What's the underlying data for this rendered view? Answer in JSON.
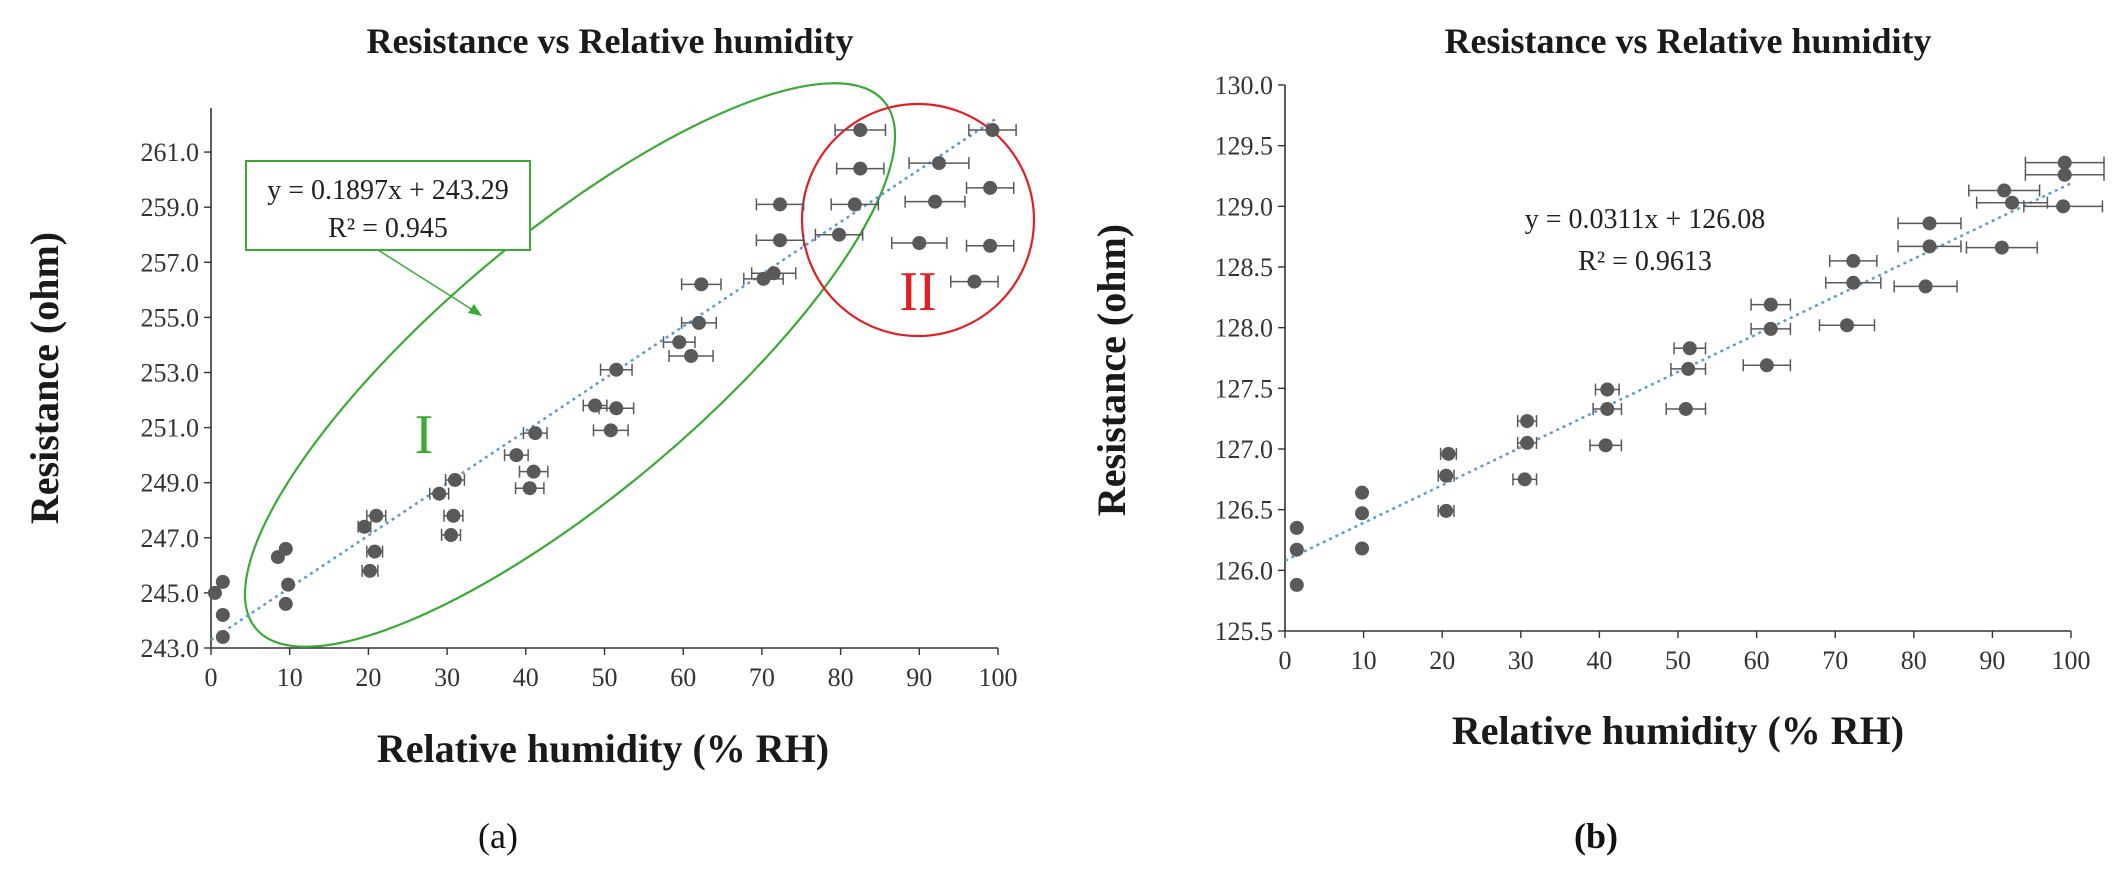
{
  "chart_data": [
    {
      "id": "a",
      "type": "scatter",
      "title": "Resistance vs Relative humidity",
      "xlabel": "Relative humidity (% RH)",
      "ylabel": "Resistance (ohm)",
      "xlim": [
        0,
        100
      ],
      "ylim": [
        243,
        262.6
      ],
      "xticks": [
        "0",
        "10",
        "20",
        "30",
        "40",
        "50",
        "60",
        "70",
        "80",
        "90",
        "100"
      ],
      "xtick_values": [
        0,
        10,
        20,
        30,
        40,
        50,
        60,
        70,
        80,
        90,
        100
      ],
      "yticks": [
        "243.0",
        "245.0",
        "247.0",
        "249.0",
        "251.0",
        "253.0",
        "255.0",
        "257.0",
        "259.0",
        "261.0"
      ],
      "ytick_values": [
        243,
        245,
        247,
        249,
        251,
        253,
        255,
        257,
        259,
        261
      ],
      "points": [
        {
          "x": 0.5,
          "y": 245.0,
          "xerr": 0
        },
        {
          "x": 1.5,
          "y": 245.4,
          "xerr": 0
        },
        {
          "x": 1.5,
          "y": 244.2,
          "xerr": 0
        },
        {
          "x": 1.5,
          "y": 243.4,
          "xerr": 0
        },
        {
          "x": 8.5,
          "y": 246.3,
          "xerr": 0
        },
        {
          "x": 9.5,
          "y": 246.6,
          "xerr": 0
        },
        {
          "x": 9.8,
          "y": 245.3,
          "xerr": 0
        },
        {
          "x": 9.5,
          "y": 244.6,
          "xerr": 0
        },
        {
          "x": 19.5,
          "y": 247.4,
          "xerr": 0.8
        },
        {
          "x": 21,
          "y": 247.8,
          "xerr": 1.2
        },
        {
          "x": 20.8,
          "y": 246.5,
          "xerr": 1.0
        },
        {
          "x": 20.2,
          "y": 245.8,
          "xerr": 1.0
        },
        {
          "x": 29,
          "y": 248.6,
          "xerr": 1.2
        },
        {
          "x": 31,
          "y": 249.1,
          "xerr": 1.2
        },
        {
          "x": 30.8,
          "y": 247.8,
          "xerr": 1.2
        },
        {
          "x": 30.5,
          "y": 247.1,
          "xerr": 1.2
        },
        {
          "x": 38.8,
          "y": 250.0,
          "xerr": 1.5
        },
        {
          "x": 41.2,
          "y": 250.8,
          "xerr": 1.5
        },
        {
          "x": 41,
          "y": 249.4,
          "xerr": 1.8
        },
        {
          "x": 40.5,
          "y": 248.8,
          "xerr": 1.8
        },
        {
          "x": 48.8,
          "y": 251.8,
          "xerr": 1.5
        },
        {
          "x": 51.5,
          "y": 253.1,
          "xerr": 2.0
        },
        {
          "x": 51.5,
          "y": 251.7,
          "xerr": 2.2
        },
        {
          "x": 50.8,
          "y": 250.9,
          "xerr": 2.2
        },
        {
          "x": 59.5,
          "y": 254.1,
          "xerr": 2.0
        },
        {
          "x": 62,
          "y": 254.8,
          "xerr": 2.2
        },
        {
          "x": 62.3,
          "y": 256.2,
          "xerr": 2.5
        },
        {
          "x": 61,
          "y": 253.6,
          "xerr": 2.8
        },
        {
          "x": 70.2,
          "y": 256.4,
          "xerr": 2.5
        },
        {
          "x": 71.5,
          "y": 256.6,
          "xerr": 2.8
        },
        {
          "x": 72.3,
          "y": 257.8,
          "xerr": 3.0
        },
        {
          "x": 72.3,
          "y": 259.1,
          "xerr": 3.0
        },
        {
          "x": 79.8,
          "y": 258.0,
          "xerr": 3.0
        },
        {
          "x": 81.8,
          "y": 259.1,
          "xerr": 3.0
        },
        {
          "x": 82.5,
          "y": 260.4,
          "xerr": 3.0
        },
        {
          "x": 82.5,
          "y": 261.8,
          "xerr": 3.2
        },
        {
          "x": 90,
          "y": 257.7,
          "xerr": 3.5
        },
        {
          "x": 92,
          "y": 259.2,
          "xerr": 3.8
        },
        {
          "x": 92.5,
          "y": 260.6,
          "xerr": 3.8
        },
        {
          "x": 97,
          "y": 256.3,
          "xerr": 3.0
        },
        {
          "x": 99,
          "y": 257.6,
          "xerr": 3.0
        },
        {
          "x": 99,
          "y": 259.7,
          "xerr": 3.0
        },
        {
          "x": 99.3,
          "y": 261.8,
          "xerr": 3.0
        }
      ],
      "trendline": {
        "slope": 0.1897,
        "intercept": 243.29,
        "x_range": [
          0,
          100
        ],
        "color": "#5b9bd5"
      },
      "equation": "y = 0.1897x + 243.29",
      "r2": "R² = 0.945",
      "annotations": {
        "region_1": {
          "label": "I",
          "color": "#3aaa35"
        },
        "region_2": {
          "label": "II",
          "color": "#e31e24"
        }
      }
    },
    {
      "id": "b",
      "type": "scatter",
      "title": "Resistance vs Relative humidity",
      "xlabel": "Relative humidity (% RH)",
      "ylabel": "Resistance (ohm)",
      "xlim": [
        0,
        100
      ],
      "ylim": [
        125.5,
        130
      ],
      "xticks": [
        "0",
        "10",
        "20",
        "30",
        "40",
        "50",
        "60",
        "70",
        "80",
        "90",
        "100"
      ],
      "xtick_values": [
        0,
        10,
        20,
        30,
        40,
        50,
        60,
        70,
        80,
        90,
        100
      ],
      "yticks": [
        "125.5",
        "126.0",
        "126.5",
        "127.0",
        "127.5",
        "128.0",
        "128.5",
        "129.0",
        "129.5",
        "130.0"
      ],
      "ytick_values": [
        125.5,
        126.0,
        126.5,
        127.0,
        127.5,
        128.0,
        128.5,
        129.0,
        129.5,
        130.0
      ],
      "points": [
        {
          "x": 1.5,
          "y": 126.35,
          "xerr": 0
        },
        {
          "x": 1.5,
          "y": 126.17,
          "xerr": 0
        },
        {
          "x": 1.5,
          "y": 125.88,
          "xerr": 0
        },
        {
          "x": 9.8,
          "y": 126.64,
          "xerr": 0
        },
        {
          "x": 9.8,
          "y": 126.47,
          "xerr": 0
        },
        {
          "x": 9.8,
          "y": 126.18,
          "xerr": 0
        },
        {
          "x": 20.8,
          "y": 126.96,
          "xerr": 1.0
        },
        {
          "x": 20.5,
          "y": 126.78,
          "xerr": 1.0
        },
        {
          "x": 20.5,
          "y": 126.49,
          "xerr": 1.0
        },
        {
          "x": 30.8,
          "y": 127.23,
          "xerr": 1.2
        },
        {
          "x": 30.8,
          "y": 127.05,
          "xerr": 1.2
        },
        {
          "x": 30.5,
          "y": 126.75,
          "xerr": 1.5
        },
        {
          "x": 41,
          "y": 127.49,
          "xerr": 1.5
        },
        {
          "x": 41,
          "y": 127.33,
          "xerr": 1.8
        },
        {
          "x": 40.8,
          "y": 127.03,
          "xerr": 2.0
        },
        {
          "x": 51.5,
          "y": 127.83,
          "xerr": 2.0
        },
        {
          "x": 51.3,
          "y": 127.66,
          "xerr": 2.2
        },
        {
          "x": 51,
          "y": 127.33,
          "xerr": 2.5
        },
        {
          "x": 61.8,
          "y": 128.19,
          "xerr": 2.5
        },
        {
          "x": 61.8,
          "y": 127.99,
          "xerr": 2.5
        },
        {
          "x": 61.3,
          "y": 127.69,
          "xerr": 3.0
        },
        {
          "x": 72.3,
          "y": 128.55,
          "xerr": 3.0
        },
        {
          "x": 72.3,
          "y": 128.37,
          "xerr": 3.5
        },
        {
          "x": 71.5,
          "y": 128.02,
          "xerr": 3.5
        },
        {
          "x": 82,
          "y": 128.86,
          "xerr": 4.0
        },
        {
          "x": 82,
          "y": 128.67,
          "xerr": 4.0
        },
        {
          "x": 81.5,
          "y": 128.34,
          "xerr": 4.0
        },
        {
          "x": 91.5,
          "y": 129.13,
          "xerr": 4.5
        },
        {
          "x": 92.5,
          "y": 129.03,
          "xerr": 4.5
        },
        {
          "x": 91.2,
          "y": 128.66,
          "xerr": 4.5
        },
        {
          "x": 99.2,
          "y": 129.36,
          "xerr": 5.0
        },
        {
          "x": 99.2,
          "y": 129.26,
          "xerr": 5.0
        },
        {
          "x": 99,
          "y": 129.0,
          "xerr": 5.0
        }
      ],
      "trendline": {
        "slope": 0.0311,
        "intercept": 126.08,
        "x_range": [
          0,
          100
        ],
        "color": "#5b9bd5"
      },
      "equation": "y = 0.0311x + 126.08",
      "r2": "R² = 0.9613"
    }
  ],
  "panel_labels": {
    "a": "(a)",
    "b": "(b)"
  },
  "colors": {
    "point": "#595959",
    "errorbar": "#595959",
    "axis": "#333333"
  }
}
